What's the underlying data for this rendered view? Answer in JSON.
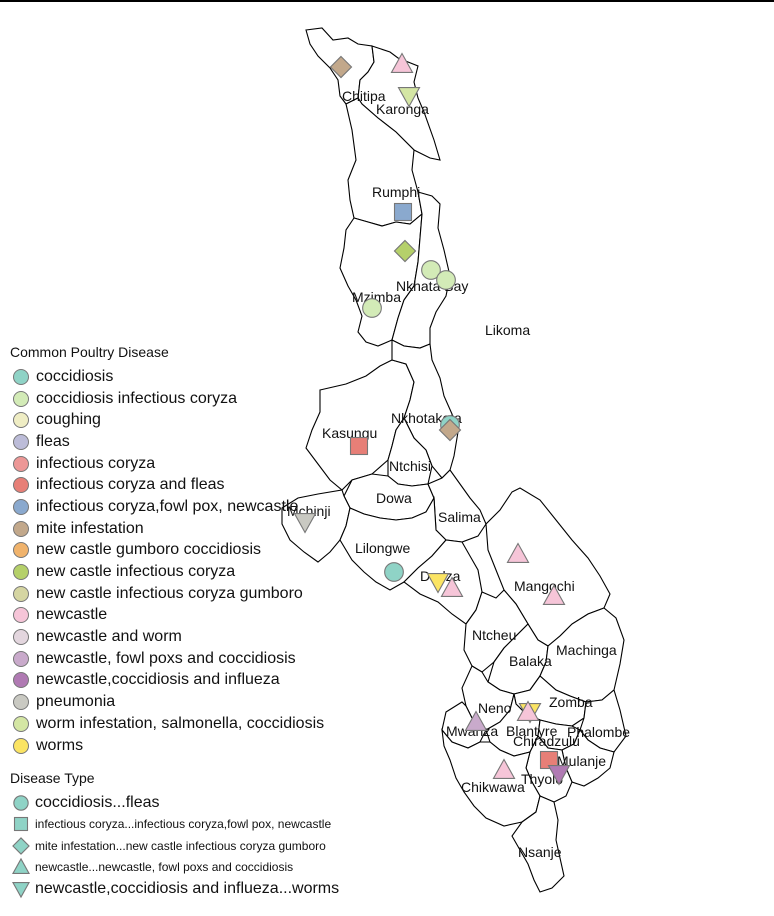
{
  "legend": {
    "title": "Common Poultry Disease",
    "items": [
      {
        "label": "coccidiosis",
        "color": "#8fd3c6"
      },
      {
        "label": "coccidiosis infectious coryza",
        "color": "#d3ebb7"
      },
      {
        "label": "coughing",
        "color": "#efedc4"
      },
      {
        "label": "fleas",
        "color": "#bcbcd8"
      },
      {
        "label": "infectious coryza",
        "color": "#ec9796"
      },
      {
        "label": "infectious coryza and fleas",
        "color": "#e77f77"
      },
      {
        "label": "infectious coryza,fowl pox, newcastle",
        "color": "#8aa9ce"
      },
      {
        "label": "mite infestation",
        "color": "#c2a88b"
      },
      {
        "label": "new castle gumboro coccidiosis",
        "color": "#f0b36c"
      },
      {
        "label": "new castle infectious coryza",
        "color": "#b5d06a"
      },
      {
        "label": "new castle infectious coryza gumboro",
        "color": "#d5d5a2"
      },
      {
        "label": "newcastle",
        "color": "#f6c5d8"
      },
      {
        "label": "newcastle and worm",
        "color": "#e3d6de"
      },
      {
        "label": "newcastle, fowl poxs and coccidiosis",
        "color": "#c9aacb"
      },
      {
        "label": "newcastle,coccidiosis and influeza",
        "color": "#b07ab3"
      },
      {
        "label": "pneumonia",
        "color": "#c9c9c2"
      },
      {
        "label": "worm infestation, salmonella, coccidiosis",
        "color": "#d4e6a4"
      },
      {
        "label": "worms",
        "color": "#fbe463"
      }
    ]
  },
  "type_legend": {
    "title": "Disease Type",
    "items": [
      {
        "label": "coccidiosis...fleas",
        "shape": "circle"
      },
      {
        "label": "infectious coryza...infectious coryza,fowl pox, newcastle",
        "shape": "square"
      },
      {
        "label": "mite infestation...new castle infectious coryza gumboro",
        "shape": "diamond"
      },
      {
        "label": "newcastle...newcastle, fowl poxs and coccidiosis",
        "shape": "triangle-up"
      },
      {
        "label": "newcastle,coccidiosis and influeza...worms",
        "shape": "triangle-down"
      }
    ],
    "color": "#8fd3c6"
  },
  "districts": [
    {
      "name": "Chitipa"
    },
    {
      "name": "Karonga"
    },
    {
      "name": "Rumphi"
    },
    {
      "name": "Nkhata Bay"
    },
    {
      "name": "Mzimba"
    },
    {
      "name": "Likoma"
    },
    {
      "name": "Nkhotakota"
    },
    {
      "name": "Kasungu"
    },
    {
      "name": "Ntchisi"
    },
    {
      "name": "Dowa"
    },
    {
      "name": "Mchinji"
    },
    {
      "name": "Salima"
    },
    {
      "name": "Lilongwe"
    },
    {
      "name": "Dedza"
    },
    {
      "name": "Mangochi"
    },
    {
      "name": "Ntcheu"
    },
    {
      "name": "Balaka"
    },
    {
      "name": "Machinga"
    },
    {
      "name": "Neno"
    },
    {
      "name": "Zomba"
    },
    {
      "name": "Mwanza"
    },
    {
      "name": "Blantyre"
    },
    {
      "name": "Phalombe"
    },
    {
      "name": "Chiradzulu"
    },
    {
      "name": "Mulanje"
    },
    {
      "name": "Chikwawa"
    },
    {
      "name": "Thyolo"
    },
    {
      "name": "Nsanje"
    }
  ],
  "markers": [
    {
      "district": "Chitipa",
      "disease": "mite infestation"
    },
    {
      "district": "Karonga",
      "disease": "newcastle"
    },
    {
      "district": "Karonga",
      "disease": "worm infestation, salmonella, coccidiosis"
    },
    {
      "district": "Rumphi",
      "disease": "infectious coryza,fowl pox, newcastle"
    },
    {
      "district": "Mzimba",
      "disease": "new castle infectious coryza"
    },
    {
      "district": "Nkhata Bay",
      "disease": "coccidiosis infectious coryza"
    },
    {
      "district": "Nkhata Bay",
      "disease": "coccidiosis infectious coryza"
    },
    {
      "district": "Mzimba",
      "disease": "coccidiosis infectious coryza"
    },
    {
      "district": "Nkhotakota",
      "disease": "coccidiosis"
    },
    {
      "district": "Nkhotakota",
      "disease": "mite infestation"
    },
    {
      "district": "Kasungu",
      "disease": "infectious coryza and fleas"
    },
    {
      "district": "Mchinji",
      "disease": "pneumonia"
    },
    {
      "district": "Lilongwe",
      "disease": "coccidiosis"
    },
    {
      "district": "Dedza",
      "disease": "worms"
    },
    {
      "district": "Dedza",
      "disease": "newcastle"
    },
    {
      "district": "Mangochi",
      "disease": "newcastle"
    },
    {
      "district": "Mangochi",
      "disease": "newcastle"
    },
    {
      "district": "Mwanza",
      "disease": "newcastle, fowl poxs and coccidiosis"
    },
    {
      "district": "Zomba",
      "disease": "worms"
    },
    {
      "district": "Zomba",
      "disease": "newcastle"
    },
    {
      "district": "Mulanje",
      "disease": "infectious coryza and fleas"
    },
    {
      "district": "Chikwawa",
      "disease": "newcastle"
    },
    {
      "district": "Thyolo",
      "disease": "newcastle,coccidiosis and influeza"
    }
  ]
}
